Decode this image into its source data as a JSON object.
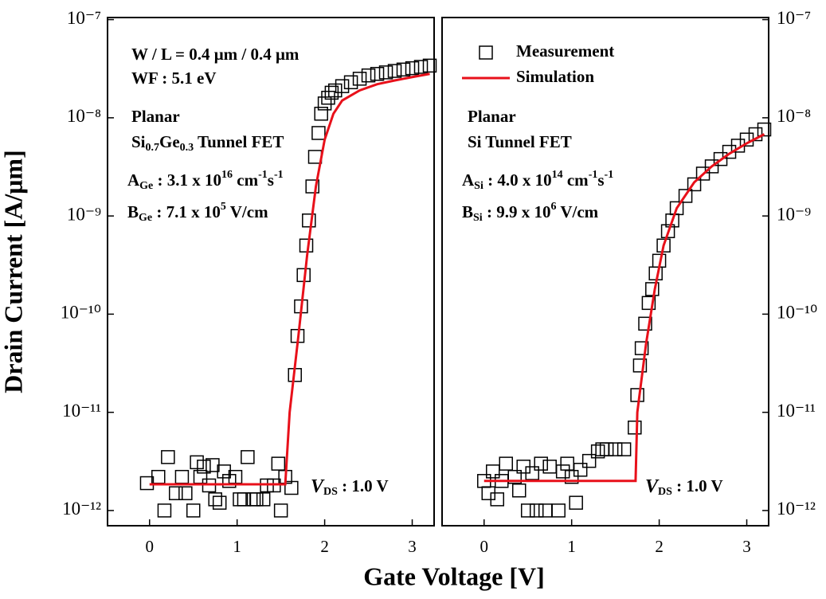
{
  "xlabel": "Gate Voltage [V]",
  "ylabel": "Drain Current [A/μm]",
  "chart_data": [
    {
      "type": "scatter",
      "log_y": true,
      "yaxis_side": "left",
      "legend": false,
      "xlim": [
        -0.48,
        3.25
      ],
      "xticks": [
        0,
        1,
        2,
        3
      ],
      "ylim": [
        7e-13,
        1.05e-07
      ],
      "yticks": [
        {
          "value": 1e-12,
          "label": "10⁻¹²"
        },
        {
          "value": 1e-11,
          "label": "10⁻¹¹"
        },
        {
          "value": 1e-10,
          "label": "10⁻¹⁰"
        },
        {
          "value": 1e-09,
          "label": "10⁻⁹"
        },
        {
          "value": 1e-08,
          "label": "10⁻⁸"
        },
        {
          "value": 1e-07,
          "label": "10⁻⁷"
        }
      ],
      "series": [
        {
          "name": "Measurement",
          "type": "scatter",
          "color": "#000000",
          "x": [
            -0.03,
            0.1,
            0.17,
            0.21,
            0.3,
            0.37,
            0.41,
            0.5,
            0.54,
            0.58,
            0.62,
            0.68,
            0.72,
            0.75,
            0.8,
            0.85,
            0.91,
            0.98,
            1.03,
            1.08,
            1.12,
            1.19,
            1.22,
            1.3,
            1.34,
            1.42,
            1.47,
            1.5,
            1.55,
            1.62,
            1.66,
            1.69,
            1.73,
            1.76,
            1.79,
            1.82,
            1.86,
            1.89,
            1.93,
            1.96,
            2.0,
            2.04,
            2.08,
            2.12,
            2.2,
            2.3,
            2.4,
            2.5,
            2.6,
            2.7,
            2.8,
            2.9,
            3.0,
            3.1,
            3.2
          ],
          "values": [
            1.9e-12,
            2.2e-12,
            1e-12,
            3.5e-12,
            1.5e-12,
            2.2e-12,
            1.5e-12,
            1e-12,
            3.1e-12,
            2.2e-12,
            2.8e-12,
            1.8e-12,
            2.9e-12,
            1.3e-12,
            1.2e-12,
            2.5e-12,
            2e-12,
            2.2e-12,
            1.3e-12,
            1.3e-12,
            3.5e-12,
            1.3e-12,
            1.3e-12,
            1.3e-12,
            1.8e-12,
            1.8e-12,
            3e-12,
            1e-12,
            2.2e-12,
            1.7e-12,
            2.4e-11,
            6e-11,
            1.2e-10,
            2.5e-10,
            5e-10,
            9e-10,
            2e-09,
            4e-09,
            7e-09,
            1.1e-08,
            1.4e-08,
            1.6e-08,
            1.8e-08,
            1.9e-08,
            2.1e-08,
            2.3e-08,
            2.5e-08,
            2.7e-08,
            2.8e-08,
            2.9e-08,
            3e-08,
            3.1e-08,
            3.2e-08,
            3.3e-08,
            3.4e-08
          ]
        },
        {
          "name": "Simulation",
          "type": "line",
          "color": "#e8101a",
          "x": [
            0,
            1.55,
            1.6,
            1.7,
            1.8,
            1.9,
            2.0,
            2.1,
            2.2,
            2.4,
            2.6,
            2.8,
            3.0,
            3.2
          ],
          "values": [
            1.85e-12,
            1.85e-12,
            1e-11,
            6e-11,
            4e-10,
            2e-09,
            6e-09,
            1.1e-08,
            1.5e-08,
            1.9e-08,
            2.2e-08,
            2.4e-08,
            2.6e-08,
            2.8e-08
          ]
        }
      ],
      "annotations": [
        {
          "runs": [
            {
              "text": "W / L = 0.4 μm / 0.4 μm"
            }
          ]
        },
        {
          "runs": [
            {
              "text": "WF : 5.1 eV"
            }
          ]
        },
        {
          "runs": [
            {
              "text": "Planar"
            }
          ]
        },
        {
          "runs": [
            {
              "text": "Si"
            },
            {
              "text": "0.7",
              "style": "sub"
            },
            {
              "text": "Ge"
            },
            {
              "text": "0.3",
              "style": "sub"
            },
            {
              "text": " Tunnel FET"
            }
          ]
        },
        {
          "runs": [
            {
              "text": "A"
            },
            {
              "text": "Ge",
              "style": "sub"
            },
            {
              "text": " : 3.1 x 10"
            },
            {
              "text": "16",
              "style": "sup"
            },
            {
              "text": " cm"
            },
            {
              "text": "-1",
              "style": "sup"
            },
            {
              "text": "s"
            },
            {
              "text": "-1",
              "style": "sup"
            }
          ]
        },
        {
          "runs": [
            {
              "text": "B"
            },
            {
              "text": "Ge",
              "style": "sub"
            },
            {
              "text": " : 7.1 x 10"
            },
            {
              "text": "5",
              "style": "sup"
            },
            {
              "text": " V/cm"
            }
          ]
        },
        {
          "runs": [
            {
              "text": "V",
              "style": "italic"
            },
            {
              "text": "DS",
              "style": "sub"
            },
            {
              "text": " : 1.0 V"
            }
          ]
        }
      ]
    },
    {
      "type": "scatter",
      "log_y": true,
      "yaxis_side": "right",
      "legend": true,
      "xlim": [
        -0.48,
        3.25
      ],
      "xticks": [
        0,
        1,
        2,
        3
      ],
      "ylim": [
        7e-13,
        1.05e-07
      ],
      "yticks": [
        {
          "value": 1e-12,
          "label": "10⁻¹²"
        },
        {
          "value": 1e-11,
          "label": "10⁻¹¹"
        },
        {
          "value": 1e-10,
          "label": "10⁻¹⁰"
        },
        {
          "value": 1e-09,
          "label": "10⁻⁹"
        },
        {
          "value": 1e-08,
          "label": "10⁻⁸"
        },
        {
          "value": 1e-07,
          "label": "10⁻⁷"
        }
      ],
      "series": [
        {
          "name": "Measurement",
          "type": "scatter",
          "color": "#000000",
          "x": [
            0.0,
            0.05,
            0.1,
            0.15,
            0.2,
            0.25,
            0.35,
            0.4,
            0.45,
            0.5,
            0.55,
            0.6,
            0.65,
            0.7,
            0.75,
            0.85,
            0.9,
            0.95,
            1.0,
            1.05,
            1.1,
            1.2,
            1.3,
            1.35,
            1.4,
            1.5,
            1.6,
            1.72,
            1.75,
            1.78,
            1.8,
            1.84,
            1.88,
            1.92,
            1.96,
            2.0,
            2.05,
            2.1,
            2.15,
            2.2,
            2.3,
            2.4,
            2.5,
            2.6,
            2.7,
            2.8,
            2.9,
            3.0,
            3.1,
            3.2
          ],
          "values": [
            2e-12,
            1.5e-12,
            2.5e-12,
            1.3e-12,
            2e-12,
            3e-12,
            2.2e-12,
            1.6e-12,
            2.8e-12,
            1e-12,
            2.4e-12,
            1e-12,
            3e-12,
            1e-12,
            2.8e-12,
            1e-12,
            2.5e-12,
            3e-12,
            2.2e-12,
            1.2e-12,
            2.6e-12,
            3.2e-12,
            4e-12,
            4.2e-12,
            4.2e-12,
            4.2e-12,
            4.2e-12,
            7e-12,
            1.5e-11,
            3e-11,
            4.5e-11,
            8e-11,
            1.3e-10,
            1.8e-10,
            2.6e-10,
            3.5e-10,
            5e-10,
            7e-10,
            9e-10,
            1.2e-09,
            1.6e-09,
            2.1e-09,
            2.7e-09,
            3.2e-09,
            3.8e-09,
            4.5e-09,
            5.2e-09,
            6e-09,
            6.8e-09,
            7.6e-09
          ]
        },
        {
          "name": "Simulation",
          "type": "line",
          "color": "#e8101a",
          "x": [
            0,
            1.73,
            1.75,
            1.85,
            1.95,
            2.05,
            2.2,
            2.4,
            2.6,
            2.8,
            3.0,
            3.2
          ],
          "values": [
            2e-12,
            2e-12,
            1e-11,
            5e-11,
            1.8e-10,
            5e-10,
            1.2e-09,
            2.2e-09,
            3.2e-09,
            4.3e-09,
            5.5e-09,
            6.8e-09
          ]
        }
      ],
      "annotations": [
        {
          "runs": [
            {
              "text": "Planar"
            }
          ]
        },
        {
          "runs": [
            {
              "text": "Si Tunnel FET"
            }
          ]
        },
        {
          "runs": [
            {
              "text": "A"
            },
            {
              "text": "Si",
              "style": "sub"
            },
            {
              "text": " : 4.0 x 10"
            },
            {
              "text": "14",
              "style": "sup"
            },
            {
              "text": " cm"
            },
            {
              "text": "-1",
              "style": "sup"
            },
            {
              "text": "s"
            },
            {
              "text": "-1",
              "style": "sup"
            }
          ]
        },
        {
          "runs": [
            {
              "text": "B"
            },
            {
              "text": "Si",
              "style": "sub"
            },
            {
              "text": " : 9.9 x 10"
            },
            {
              "text": "6",
              "style": "sup"
            },
            {
              "text": " V/cm"
            }
          ]
        },
        {
          "runs": [
            {
              "text": "V",
              "style": "italic"
            },
            {
              "text": "DS",
              "style": "sub"
            },
            {
              "text": " : 1.0 V"
            }
          ]
        }
      ]
    }
  ]
}
